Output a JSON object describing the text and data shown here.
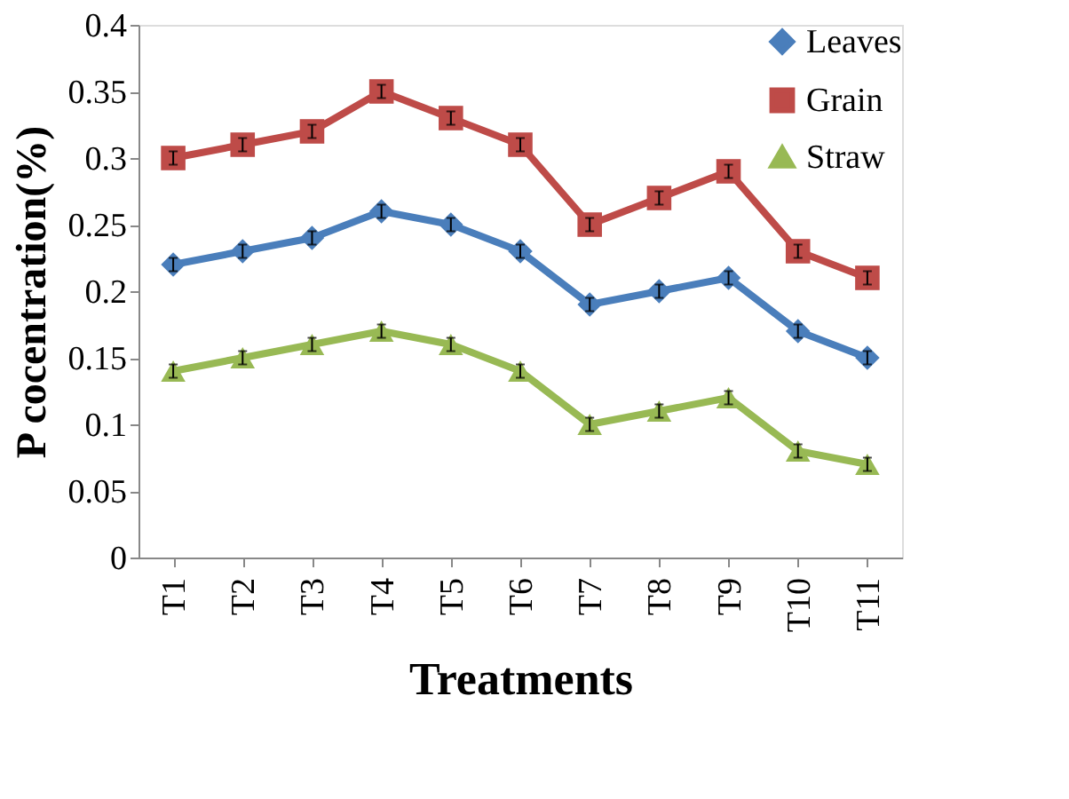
{
  "chart_data": {
    "type": "line",
    "xlabel": "Treatments",
    "ylabel": "P cocentration(%)",
    "categories": [
      "T1",
      "T2",
      "T3",
      "T4",
      "T5",
      "T6",
      "T7",
      "T8",
      "T9",
      "T10",
      "T11"
    ],
    "series": [
      {
        "name": "Leaves",
        "color": "#4a7ebb",
        "marker": "diamond",
        "values": [
          0.22,
          0.23,
          0.24,
          0.26,
          0.25,
          0.23,
          0.19,
          0.2,
          0.21,
          0.17,
          0.15
        ],
        "errors": [
          0.005,
          0.005,
          0.005,
          0.005,
          0.005,
          0.005,
          0.005,
          0.005,
          0.005,
          0.005,
          0.005
        ]
      },
      {
        "name": "Grain",
        "color": "#be4b48",
        "marker": "square",
        "values": [
          0.3,
          0.31,
          0.32,
          0.35,
          0.33,
          0.31,
          0.25,
          0.27,
          0.29,
          0.23,
          0.21
        ],
        "errors": [
          0.005,
          0.005,
          0.005,
          0.005,
          0.005,
          0.005,
          0.005,
          0.005,
          0.005,
          0.005,
          0.005
        ]
      },
      {
        "name": "Straw",
        "color": "#98b954",
        "marker": "triangle",
        "values": [
          0.14,
          0.15,
          0.16,
          0.17,
          0.16,
          0.14,
          0.1,
          0.11,
          0.12,
          0.08,
          0.07
        ],
        "errors": [
          0.005,
          0.005,
          0.005,
          0.005,
          0.005,
          0.005,
          0.005,
          0.005,
          0.005,
          0.005,
          0.005
        ]
      }
    ],
    "ylim": [
      0,
      0.4
    ],
    "yticks": [
      0,
      0.05,
      0.1,
      0.15,
      0.2,
      0.25,
      0.3,
      0.35,
      0.4
    ],
    "grid": false,
    "legend": "top right"
  }
}
